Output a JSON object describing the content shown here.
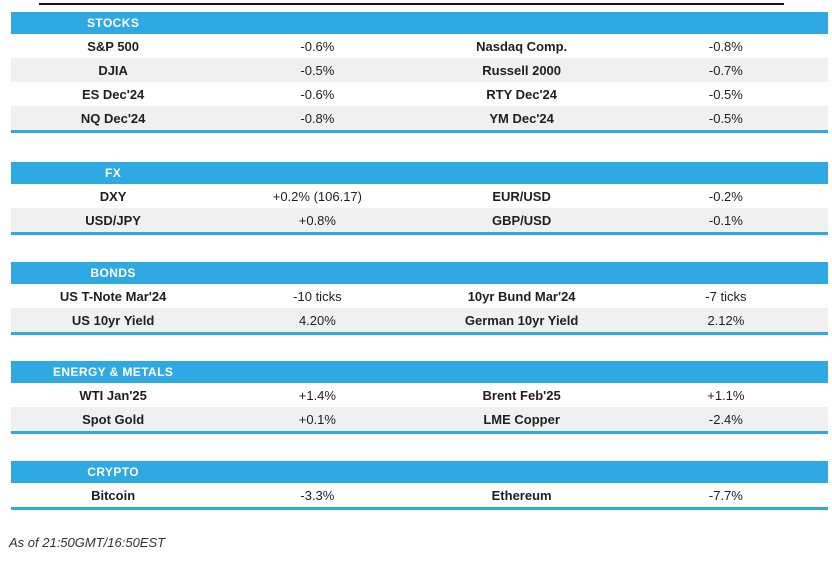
{
  "colors": {
    "accent_blue": "#2FA9E1",
    "row_alt_gray": "#F0F0F1",
    "row_text": "#1F1F1F",
    "top_line_dark": "#141414"
  },
  "layout_tops": [
    12,
    162,
    262,
    361,
    461
  ],
  "sections": [
    {
      "id": "stocks",
      "title": "STOCKS",
      "rows": [
        [
          "S&P 500",
          "-0.6%",
          "Nasdaq Comp.",
          "-0.8%"
        ],
        [
          "DJIA",
          "-0.5%",
          "Russell 2000",
          "-0.7%"
        ],
        [
          "ES Dec'24",
          "-0.6%",
          "RTY Dec'24",
          "-0.5%"
        ],
        [
          "NQ Dec'24",
          "-0.8%",
          "YM Dec'24",
          "-0.5%"
        ]
      ]
    },
    {
      "id": "fx",
      "title": "FX",
      "rows": [
        [
          "DXY",
          "+0.2% (106.17)",
          "EUR/USD",
          "-0.2%"
        ],
        [
          "USD/JPY",
          "+0.8%",
          "GBP/USD",
          "-0.1%"
        ]
      ]
    },
    {
      "id": "bonds",
      "title": "BONDS",
      "rows": [
        [
          "US T-Note Mar'24",
          "-10 ticks",
          "10yr Bund Mar'24",
          "-7 ticks"
        ],
        [
          "US 10yr Yield",
          "4.20%",
          "German 10yr Yield",
          "2.12%"
        ]
      ]
    },
    {
      "id": "energy-metals",
      "title": "ENERGY & METALS",
      "rows": [
        [
          "WTI Jan'25",
          "+1.4%",
          "Brent Feb'25",
          "+1.1%"
        ],
        [
          "Spot Gold",
          "+0.1%",
          "LME Copper",
          "-2.4%"
        ]
      ]
    },
    {
      "id": "crypto",
      "title": "CRYPTO",
      "rows": [
        [
          "Bitcoin",
          "-3.3%",
          "Ethereum",
          "-7.7%"
        ]
      ]
    }
  ],
  "footer": {
    "as_of": "As of 21:50GMT/16:50EST"
  }
}
